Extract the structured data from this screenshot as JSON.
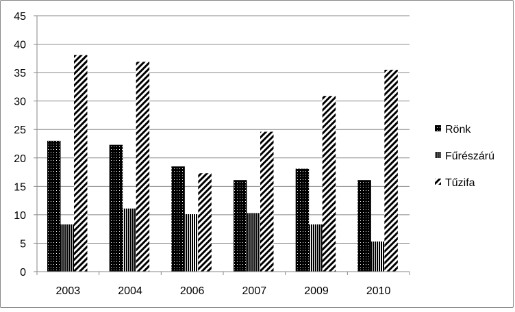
{
  "chart_data": {
    "type": "bar",
    "categories": [
      "2003",
      "2004",
      "2006",
      "2007",
      "2009",
      "2010"
    ],
    "series": [
      {
        "name": "Rönk",
        "values": [
          23,
          22.3,
          18.5,
          16.1,
          18.1,
          16.1
        ],
        "pattern": "dotted-black"
      },
      {
        "name": "Fűrészárú",
        "values": [
          8.3,
          11.1,
          10.1,
          10.3,
          8.3,
          5.3
        ],
        "pattern": "vertical-stripes"
      },
      {
        "name": "Tűzifa",
        "values": [
          38.1,
          36.9,
          17.3,
          24.6,
          30.9,
          35.5
        ],
        "pattern": "diagonal-stripes"
      }
    ],
    "ylim": [
      0,
      45
    ],
    "yticks": [
      "0",
      "5",
      "10",
      "15",
      "20",
      "25",
      "30",
      "35",
      "40",
      "45"
    ],
    "grid": true,
    "legend": "right",
    "colors": {
      "bars": "#000000",
      "grid": "#878787",
      "background": "#ffffff"
    }
  }
}
